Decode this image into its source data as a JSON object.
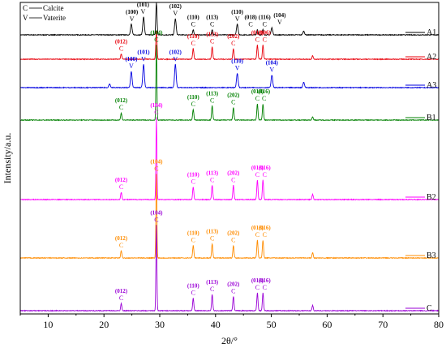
{
  "chart_data": {
    "type": "line",
    "title": "",
    "xlabel": "2θ/°",
    "ylabel": "Intensity/a.u.",
    "xlim": [
      5,
      80
    ],
    "xticks": [
      "10",
      "20",
      "30",
      "40",
      "50",
      "60",
      "70",
      "80"
    ],
    "grid": false,
    "key": [
      {
        "letter": "C",
        "text": "Calcite"
      },
      {
        "letter": "V",
        "text": "Vaterite"
      }
    ],
    "series": [
      {
        "name": "A1",
        "color": "#000000",
        "peaks": [
          {
            "x": 24.9,
            "h": 6,
            "w": 0.2
          },
          {
            "x": 27.1,
            "h": 10,
            "w": 0.2
          },
          {
            "x": 29.4,
            "h": 18,
            "w": 0.15
          },
          {
            "x": 32.8,
            "h": 9,
            "w": 0.2
          },
          {
            "x": 36.0,
            "h": 3,
            "w": 0.15
          },
          {
            "x": 39.4,
            "h": 3,
            "w": 0.15
          },
          {
            "x": 43.9,
            "h": 6,
            "w": 0.2
          },
          {
            "x": 47.5,
            "h": 3,
            "w": 0.15
          },
          {
            "x": 48.5,
            "h": 3,
            "w": 0.15
          },
          {
            "x": 50.1,
            "h": 4,
            "w": 0.2
          },
          {
            "x": 55.8,
            "h": 2,
            "w": 0.2
          }
        ],
        "labels": [
          {
            "x": 25.0,
            "hkl": "(100)",
            "letter": "V"
          },
          {
            "x": 27.0,
            "hkl": "(101)",
            "letter": "V"
          },
          {
            "x": 29.4,
            "hkl": "(104)",
            "letter": "C"
          },
          {
            "x": 32.8,
            "hkl": "(102)",
            "letter": "V"
          },
          {
            "x": 36.0,
            "hkl": "(110)",
            "letter": "C"
          },
          {
            "x": 39.4,
            "hkl": "(113)",
            "letter": "C"
          },
          {
            "x": 43.9,
            "hkl": "(110)",
            "letter": "V"
          },
          {
            "x": 46.3,
            "hkl": "(018)",
            "letter": "C"
          },
          {
            "x": 48.8,
            "hkl": "(116)",
            "letter": "C"
          },
          {
            "x": 51.5,
            "hkl": "(104)",
            "letter": "V"
          }
        ]
      },
      {
        "name": "A2",
        "color": "#e8000b",
        "peaks": [
          {
            "x": 23.1,
            "h": 3,
            "w": 0.15
          },
          {
            "x": 29.4,
            "h": 16,
            "w": 0.15
          },
          {
            "x": 36.0,
            "h": 6,
            "w": 0.15
          },
          {
            "x": 39.4,
            "h": 7,
            "w": 0.15
          },
          {
            "x": 43.2,
            "h": 6,
            "w": 0.15
          },
          {
            "x": 47.5,
            "h": 8,
            "w": 0.15
          },
          {
            "x": 48.5,
            "h": 8,
            "w": 0.15
          },
          {
            "x": 57.4,
            "h": 2,
            "w": 0.15
          }
        ],
        "labels": [
          {
            "x": 23.1,
            "hkl": "(012)",
            "letter": "C"
          },
          {
            "x": 36.0,
            "hkl": "(110)",
            "letter": "C"
          },
          {
            "x": 39.4,
            "hkl": "(113)",
            "letter": "C"
          },
          {
            "x": 43.2,
            "hkl": "(202)",
            "letter": "C"
          },
          {
            "x": 47.5,
            "hkl": "(018)",
            "letter": "C"
          },
          {
            "x": 48.8,
            "hkl": "(106)",
            "letter": "C"
          }
        ]
      },
      {
        "name": "A3",
        "color": "#0000e0",
        "peaks": [
          {
            "x": 21.0,
            "h": 2,
            "w": 0.2
          },
          {
            "x": 24.9,
            "h": 9,
            "w": 0.2
          },
          {
            "x": 27.1,
            "h": 13,
            "w": 0.2
          },
          {
            "x": 32.8,
            "h": 13,
            "w": 0.2
          },
          {
            "x": 43.9,
            "h": 8,
            "w": 0.2
          },
          {
            "x": 50.1,
            "h": 7,
            "w": 0.2
          },
          {
            "x": 55.8,
            "h": 3,
            "w": 0.2
          }
        ],
        "labels": [
          {
            "x": 24.9,
            "hkl": "(100)",
            "letter": "V"
          },
          {
            "x": 27.1,
            "hkl": "(101)",
            "letter": "V"
          },
          {
            "x": 32.8,
            "hkl": "(102)",
            "letter": "V"
          },
          {
            "x": 43.9,
            "hkl": "(110)",
            "letter": "V"
          },
          {
            "x": 50.1,
            "hkl": "(104)",
            "letter": "V"
          }
        ]
      },
      {
        "name": "B1",
        "color": "#008000",
        "peaks": [
          {
            "x": 23.1,
            "h": 4,
            "w": 0.15
          },
          {
            "x": 29.4,
            "h": 42,
            "w": 0.12
          },
          {
            "x": 36.0,
            "h": 6,
            "w": 0.15
          },
          {
            "x": 39.4,
            "h": 8,
            "w": 0.15
          },
          {
            "x": 43.2,
            "h": 7,
            "w": 0.15
          },
          {
            "x": 47.5,
            "h": 9,
            "w": 0.15
          },
          {
            "x": 48.5,
            "h": 9,
            "w": 0.15
          },
          {
            "x": 57.4,
            "h": 2,
            "w": 0.15
          }
        ],
        "labels": [
          {
            "x": 23.1,
            "hkl": "(012)",
            "letter": "C"
          },
          {
            "x": 29.4,
            "hkl": "(104)",
            "letter": "C"
          },
          {
            "x": 36.0,
            "hkl": "(110)",
            "letter": "C"
          },
          {
            "x": 39.4,
            "hkl": "(113)",
            "letter": "C"
          },
          {
            "x": 43.2,
            "hkl": "(202)",
            "letter": "C"
          },
          {
            "x": 47.5,
            "hkl": "(018)",
            "letter": "C"
          },
          {
            "x": 48.7,
            "hkl": "(116)",
            "letter": "C"
          }
        ]
      },
      {
        "name": "B2",
        "color": "#ff00ff",
        "peaks": [
          {
            "x": 23.1,
            "h": 4,
            "w": 0.15
          },
          {
            "x": 29.4,
            "h": 46,
            "w": 0.12
          },
          {
            "x": 36.0,
            "h": 7,
            "w": 0.15
          },
          {
            "x": 39.4,
            "h": 8,
            "w": 0.15
          },
          {
            "x": 43.2,
            "h": 8,
            "w": 0.15
          },
          {
            "x": 47.5,
            "h": 11,
            "w": 0.15
          },
          {
            "x": 48.5,
            "h": 11,
            "w": 0.15
          },
          {
            "x": 57.4,
            "h": 3,
            "w": 0.15
          }
        ],
        "labels": [
          {
            "x": 23.1,
            "hkl": "(012)",
            "letter": "C"
          },
          {
            "x": 29.4,
            "hkl": "(104)",
            "letter": "C"
          },
          {
            "x": 36.0,
            "hkl": "(110)",
            "letter": "C"
          },
          {
            "x": 39.4,
            "hkl": "(113)",
            "letter": "C"
          },
          {
            "x": 43.2,
            "hkl": "(202)",
            "letter": "C"
          },
          {
            "x": 47.5,
            "hkl": "(018)",
            "letter": "C"
          },
          {
            "x": 48.8,
            "hkl": "(116)",
            "letter": "C"
          }
        ]
      },
      {
        "name": "B3",
        "color": "#ff8c00",
        "peaks": [
          {
            "x": 23.1,
            "h": 4,
            "w": 0.15
          },
          {
            "x": 29.4,
            "h": 47,
            "w": 0.12
          },
          {
            "x": 36.0,
            "h": 7,
            "w": 0.15
          },
          {
            "x": 39.4,
            "h": 8,
            "w": 0.15
          },
          {
            "x": 43.2,
            "h": 7,
            "w": 0.15
          },
          {
            "x": 47.5,
            "h": 10,
            "w": 0.15
          },
          {
            "x": 48.5,
            "h": 10,
            "w": 0.15
          },
          {
            "x": 57.4,
            "h": 3,
            "w": 0.15
          }
        ],
        "labels": [
          {
            "x": 23.1,
            "hkl": "(012)",
            "letter": "C"
          },
          {
            "x": 29.4,
            "hkl": "(104)",
            "letter": "C"
          },
          {
            "x": 36.0,
            "hkl": "(110)",
            "letter": "C"
          },
          {
            "x": 39.4,
            "hkl": "(113)",
            "letter": "C"
          },
          {
            "x": 43.2,
            "hkl": "(202)",
            "letter": "C"
          },
          {
            "x": 47.5,
            "hkl": "(018)",
            "letter": "C"
          },
          {
            "x": 48.8,
            "hkl": "(116)",
            "letter": "C"
          }
        ]
      },
      {
        "name": "C",
        "color": "#9a00d6",
        "peaks": [
          {
            "x": 23.1,
            "h": 4,
            "w": 0.15
          },
          {
            "x": 29.4,
            "h": 48,
            "w": 0.12
          },
          {
            "x": 36.0,
            "h": 7,
            "w": 0.15
          },
          {
            "x": 39.4,
            "h": 9,
            "w": 0.15
          },
          {
            "x": 43.2,
            "h": 8,
            "w": 0.15
          },
          {
            "x": 47.5,
            "h": 10,
            "w": 0.15
          },
          {
            "x": 48.5,
            "h": 10,
            "w": 0.15
          },
          {
            "x": 57.4,
            "h": 3,
            "w": 0.15
          }
        ],
        "labels": [
          {
            "x": 23.1,
            "hkl": "(012)",
            "letter": "C"
          },
          {
            "x": 29.4,
            "hkl": "(104)",
            "letter": "C"
          },
          {
            "x": 36.0,
            "hkl": "(110)",
            "letter": "C"
          },
          {
            "x": 39.4,
            "hkl": "(113)",
            "letter": "C"
          },
          {
            "x": 43.2,
            "hkl": "(202)",
            "letter": "C"
          },
          {
            "x": 47.5,
            "hkl": "(018)",
            "letter": "C"
          },
          {
            "x": 48.8,
            "hkl": "(116)",
            "letter": "C"
          }
        ]
      }
    ]
  }
}
